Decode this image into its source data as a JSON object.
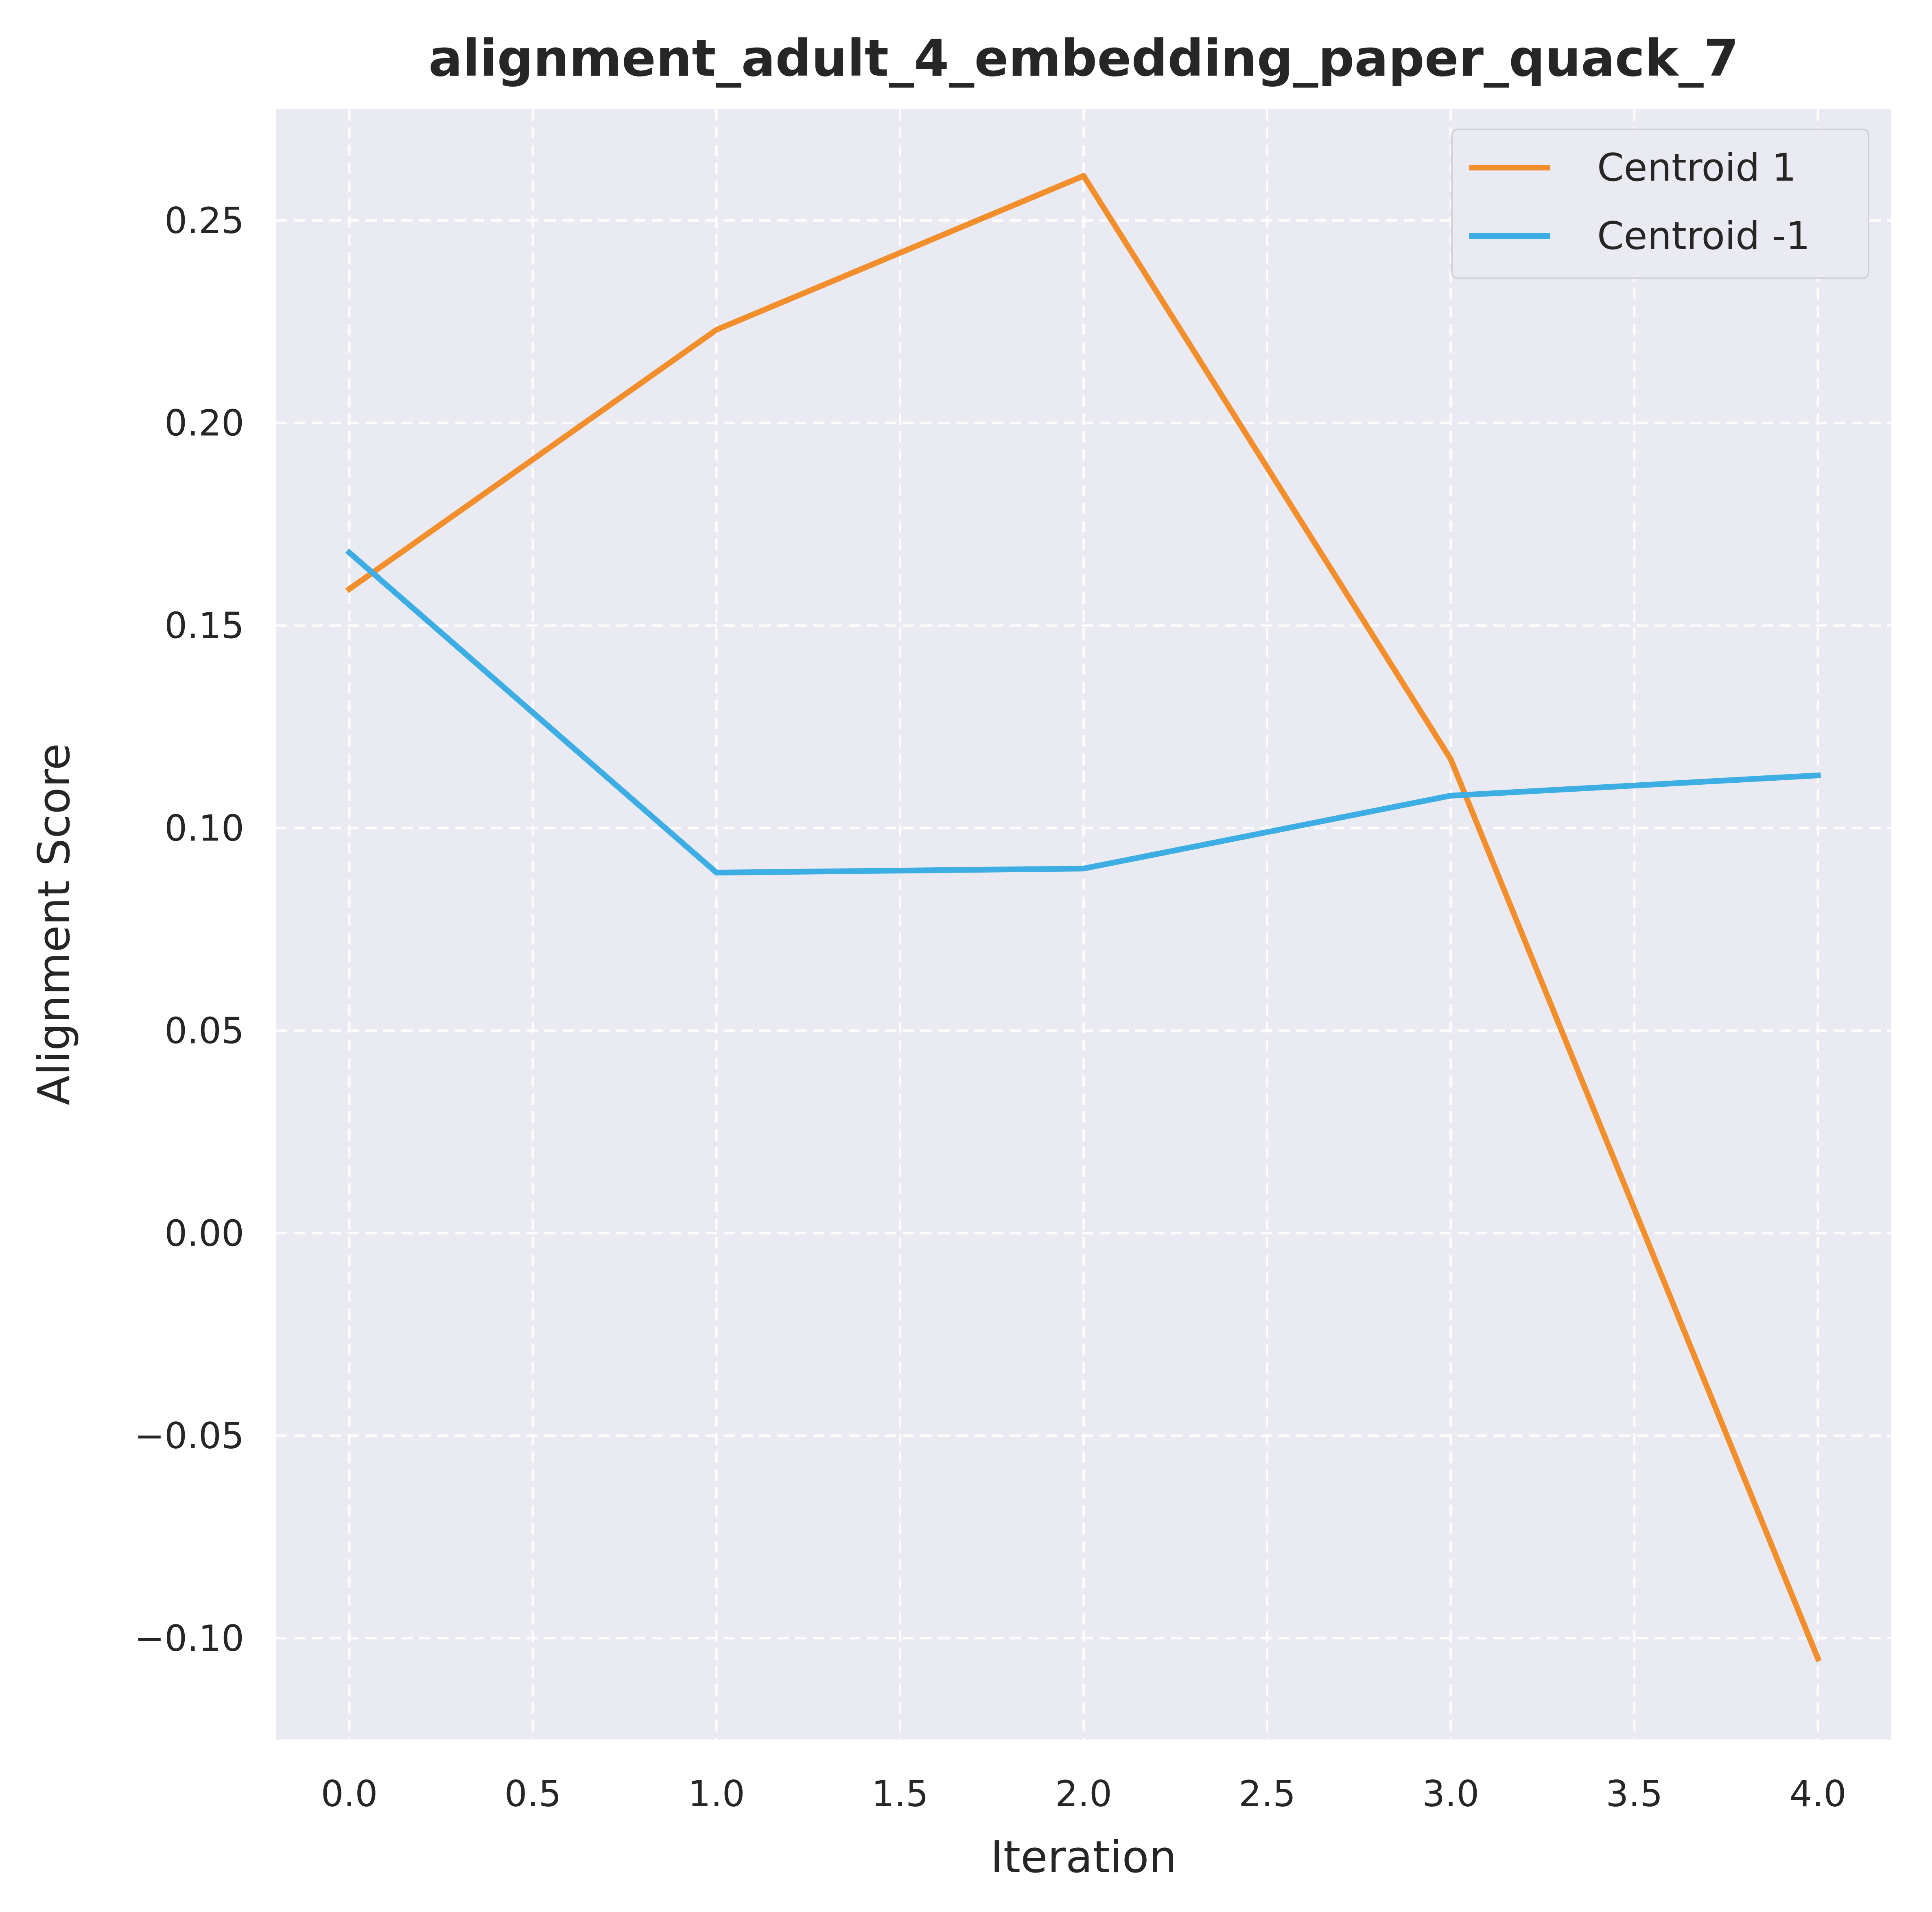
{
  "chart_data": {
    "type": "line",
    "title": "alignment_adult_4_embedding_paper_quack_7",
    "xlabel": "Iteration",
    "ylabel": "Alignment Score",
    "xlim": [
      -0.2,
      4.2
    ],
    "ylim": [
      -0.125,
      0.2775
    ],
    "x_ticks": [
      0.0,
      0.5,
      1.0,
      1.5,
      2.0,
      2.5,
      3.0,
      3.5,
      4.0
    ],
    "x_tick_labels": [
      "0.0",
      "0.5",
      "1.0",
      "1.5",
      "2.0",
      "2.5",
      "3.0",
      "3.5",
      "4.0"
    ],
    "y_ticks": [
      -0.1,
      -0.05,
      0.0,
      0.05,
      0.1,
      0.15,
      0.2,
      0.25
    ],
    "y_tick_labels": [
      "−0.10",
      "−0.05",
      "0.00",
      "0.05",
      "0.10",
      "0.15",
      "0.20",
      "0.25"
    ],
    "grid": true,
    "legend_position": "top-right",
    "background_color": "#eaeaf2",
    "x": [
      0,
      1,
      2,
      3,
      4
    ],
    "series": [
      {
        "name": "Centroid 1",
        "color": "#f28e2b",
        "values": [
          0.159,
          0.223,
          0.261,
          0.117,
          -0.105
        ]
      },
      {
        "name": "Centroid -1",
        "color": "#3caee4",
        "values": [
          0.168,
          0.089,
          0.09,
          0.108,
          0.113
        ]
      }
    ]
  }
}
